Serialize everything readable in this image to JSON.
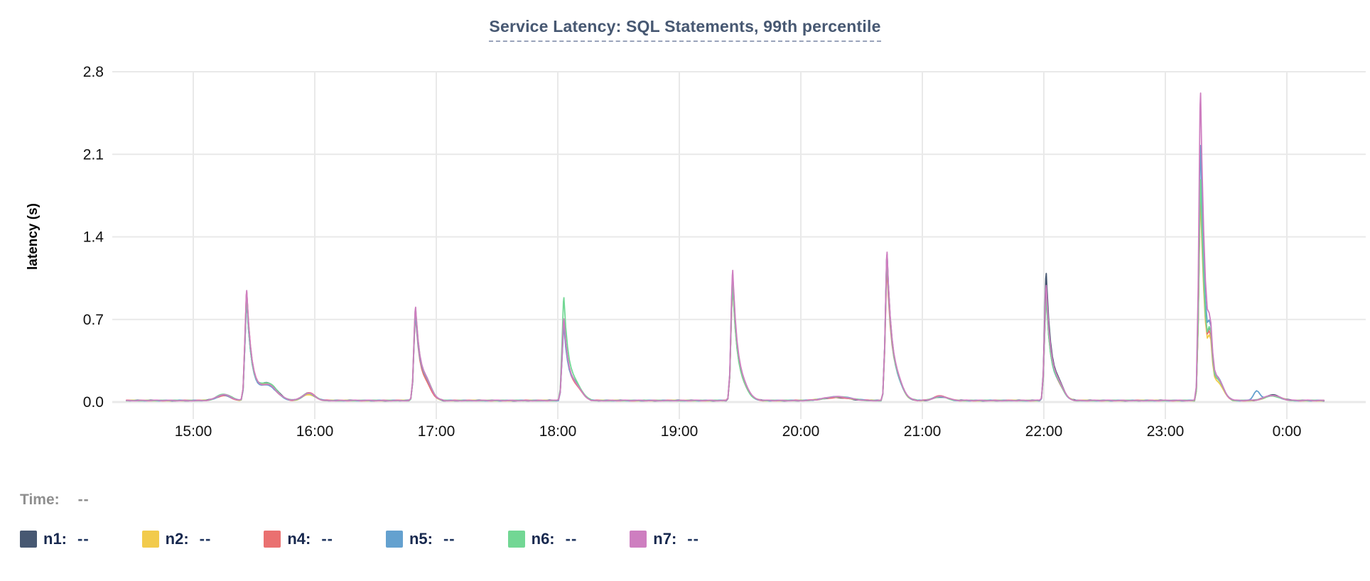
{
  "header": {
    "title": "Service Latency: SQL Statements, 99th percentile"
  },
  "tooltip_bar": {
    "time_label": "Time:",
    "time_value": "--"
  },
  "colors": {
    "title": "#475872",
    "grid": "#e9e9e9",
    "axis_text": "#111111",
    "time_text": "#8f8f8f",
    "legend_text": "#17284e"
  },
  "chart_data": {
    "type": "line",
    "title": "Service Latency: SQL Statements, 99th percentile",
    "xlabel": "",
    "ylabel": "latency (s)",
    "grid": true,
    "legend_position": "bottom",
    "x_tick_hours": [
      15,
      16,
      17,
      18,
      19,
      20,
      21,
      22,
      23,
      24
    ],
    "x_tick_labels": [
      "15:00",
      "16:00",
      "17:00",
      "18:00",
      "19:00",
      "20:00",
      "21:00",
      "22:00",
      "23:00",
      "0:00"
    ],
    "x_domain_hours": [
      14.45,
      24.31
    ],
    "y_ticks": [
      0.0,
      0.7,
      1.4,
      2.1,
      2.8
    ],
    "y_tick_labels": [
      "0.0",
      "0.7",
      "1.4",
      "2.1",
      "2.8"
    ],
    "ylim": [
      0,
      2.9
    ],
    "series": [
      {
        "id": "n1",
        "label": "n1:",
        "value": "--",
        "color": "#475872"
      },
      {
        "id": "n2",
        "label": "n2:",
        "value": "--",
        "color": "#f2cb4c"
      },
      {
        "id": "n4",
        "label": "n4:",
        "value": "--",
        "color": "#ea7070"
      },
      {
        "id": "n5",
        "label": "n5:",
        "value": "--",
        "color": "#64a1cf"
      },
      {
        "id": "n6",
        "label": "n6:",
        "value": "--",
        "color": "#72d794"
      },
      {
        "id": "n7",
        "label": "n7:",
        "value": "--",
        "color": "#ce7ec0"
      }
    ],
    "baseline_seconds": 0.015,
    "spikes": [
      {
        "time": "15:26",
        "t": 15.44,
        "peak_s": 0.93
      },
      {
        "time": "16:50",
        "t": 16.83,
        "peak_s": 0.78
      },
      {
        "time": "18:03",
        "t": 18.05,
        "peak_s": 0.68,
        "per_series": {
          "n6": 0.86
        }
      },
      {
        "time": "19:26",
        "t": 19.44,
        "peak_s": 1.1
      },
      {
        "time": "20:43",
        "t": 20.71,
        "peak_s": 1.25
      },
      {
        "time": "22:01",
        "t": 22.02,
        "peak_s": 0.97,
        "per_series": {
          "n1": 1.07
        }
      },
      {
        "time": "23:17",
        "t": 23.29,
        "peak_s": 1.85,
        "per_series": {
          "n7": 2.61,
          "n5": 2.16,
          "n6": 1.87
        }
      }
    ],
    "bumps": [
      {
        "t": 15.25,
        "height_s": 0.05,
        "w": 0.08
      },
      {
        "t": 15.62,
        "height_s": 0.13,
        "w": 0.1
      },
      {
        "t": 15.95,
        "height_s": 0.06,
        "w": 0.07
      },
      {
        "t": 16.92,
        "height_s": 0.1,
        "w": 0.06
      },
      {
        "t": 18.15,
        "height_s": 0.09,
        "w": 0.07
      },
      {
        "t": 19.53,
        "height_s": 0.06,
        "w": 0.06
      },
      {
        "t": 20.3,
        "height_s": 0.03,
        "w": 0.15
      },
      {
        "t": 20.8,
        "height_s": 0.09,
        "w": 0.06
      },
      {
        "t": 21.15,
        "height_s": 0.035,
        "w": 0.08
      },
      {
        "t": 22.12,
        "height_s": 0.1,
        "w": 0.06
      },
      {
        "t": 23.37,
        "height_s": 0.32,
        "w": 0.02
      },
      {
        "t": 23.44,
        "height_s": 0.12,
        "w": 0.06
      },
      {
        "t": 23.75,
        "height_s": 0.085,
        "w": 0.035,
        "series": "n5"
      },
      {
        "t": 23.88,
        "height_s": 0.045,
        "w": 0.09
      }
    ]
  }
}
